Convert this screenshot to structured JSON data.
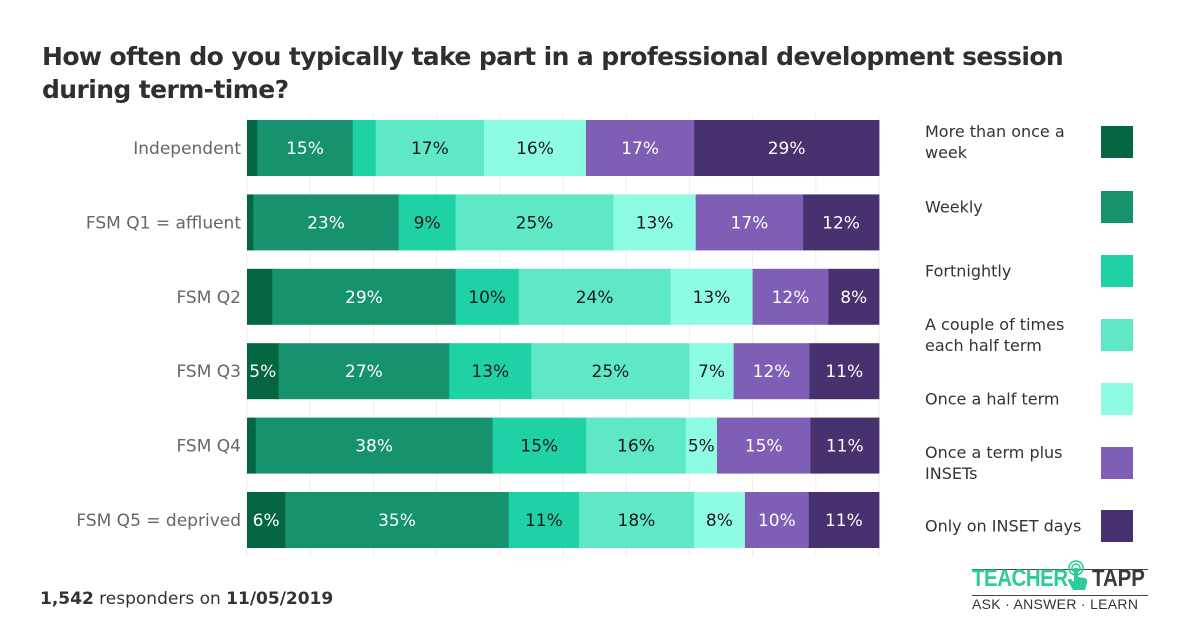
{
  "chart_data": {
    "type": "bar",
    "orientation": "horizontal-stacked-100",
    "title": "How often do you typically take part in a professional development session during term-time?",
    "xlabel": "",
    "ylabel": "",
    "xlim": [
      0,
      100
    ],
    "grid": true,
    "legend_position": "right",
    "categories": [
      "Independent",
      "FSM Q1 = affluent",
      "FSM Q2",
      "FSM Q3",
      "FSM Q4",
      "FSM Q5 = deprived"
    ],
    "series": [
      {
        "name": "More than once a week",
        "color": "#036641",
        "values": [
          1.6,
          1,
          4,
          5,
          1.4,
          6
        ],
        "labels": [
          "",
          "",
          "",
          "5%",
          "",
          "6%"
        ]
      },
      {
        "name": "Weekly",
        "color": "#16926f",
        "values": [
          15,
          23,
          29,
          27,
          38,
          35
        ],
        "labels": [
          "15%",
          "23%",
          "29%",
          "27%",
          "38%",
          "35%"
        ]
      },
      {
        "name": "Fortnightly",
        "color": "#1ed2a6",
        "values": [
          3.6,
          9,
          10,
          13,
          15,
          11
        ],
        "labels": [
          "",
          "9%",
          "10%",
          "13%",
          "15%",
          "11%"
        ]
      },
      {
        "name": "A couple of times each half term",
        "color": "#5ee8c5",
        "values": [
          17,
          25,
          24,
          25,
          16,
          18
        ],
        "labels": [
          "17%",
          "25%",
          "24%",
          "25%",
          "16%",
          "18%"
        ]
      },
      {
        "name": "Once a half term",
        "color": "#8efce3",
        "values": [
          16,
          13,
          13,
          7,
          5,
          8
        ],
        "labels": [
          "16%",
          "13%",
          "13%",
          "7%",
          "5%",
          "8%"
        ]
      },
      {
        "name": "Once a term plus INSETs",
        "color": "#7e5fb5",
        "values": [
          17,
          17,
          12,
          12,
          15,
          10
        ],
        "labels": [
          "17%",
          "17%",
          "12%",
          "12%",
          "15%",
          "10%"
        ]
      },
      {
        "name": "Only on INSET days",
        "color": "#47316e",
        "values": [
          29,
          12,
          8,
          11,
          11,
          11
        ],
        "labels": [
          "29%",
          "12%",
          "8%",
          "11%",
          "11%",
          "11%"
        ]
      }
    ],
    "label_colors": [
      "#ffffff",
      "#ffffff",
      "#1a1a1a",
      "#1a1a1a",
      "#1a1a1a",
      "#ffffff",
      "#ffffff"
    ]
  },
  "legend": {
    "items": [
      {
        "label": "More than once a week",
        "color": "#036641"
      },
      {
        "label": "Weekly",
        "color": "#16926f"
      },
      {
        "label": "Fortnightly",
        "color": "#1ed2a6"
      },
      {
        "label": "A couple of times each half term",
        "color": "#5ee8c5"
      },
      {
        "label": "Once a half term",
        "color": "#8efce3"
      },
      {
        "label": "Once a term plus INSETs",
        "color": "#7e5fb5"
      },
      {
        "label": "Only on INSET days",
        "color": "#47316e"
      }
    ]
  },
  "footer": {
    "count": "1,542",
    "middle": " responders on ",
    "date": "11/05/2019"
  },
  "logo": {
    "word1": "TEACHER",
    "word2": "TAPP",
    "tagline": "ASK · ANSWER · LEARN",
    "brand_color": "#2ccc9a"
  }
}
